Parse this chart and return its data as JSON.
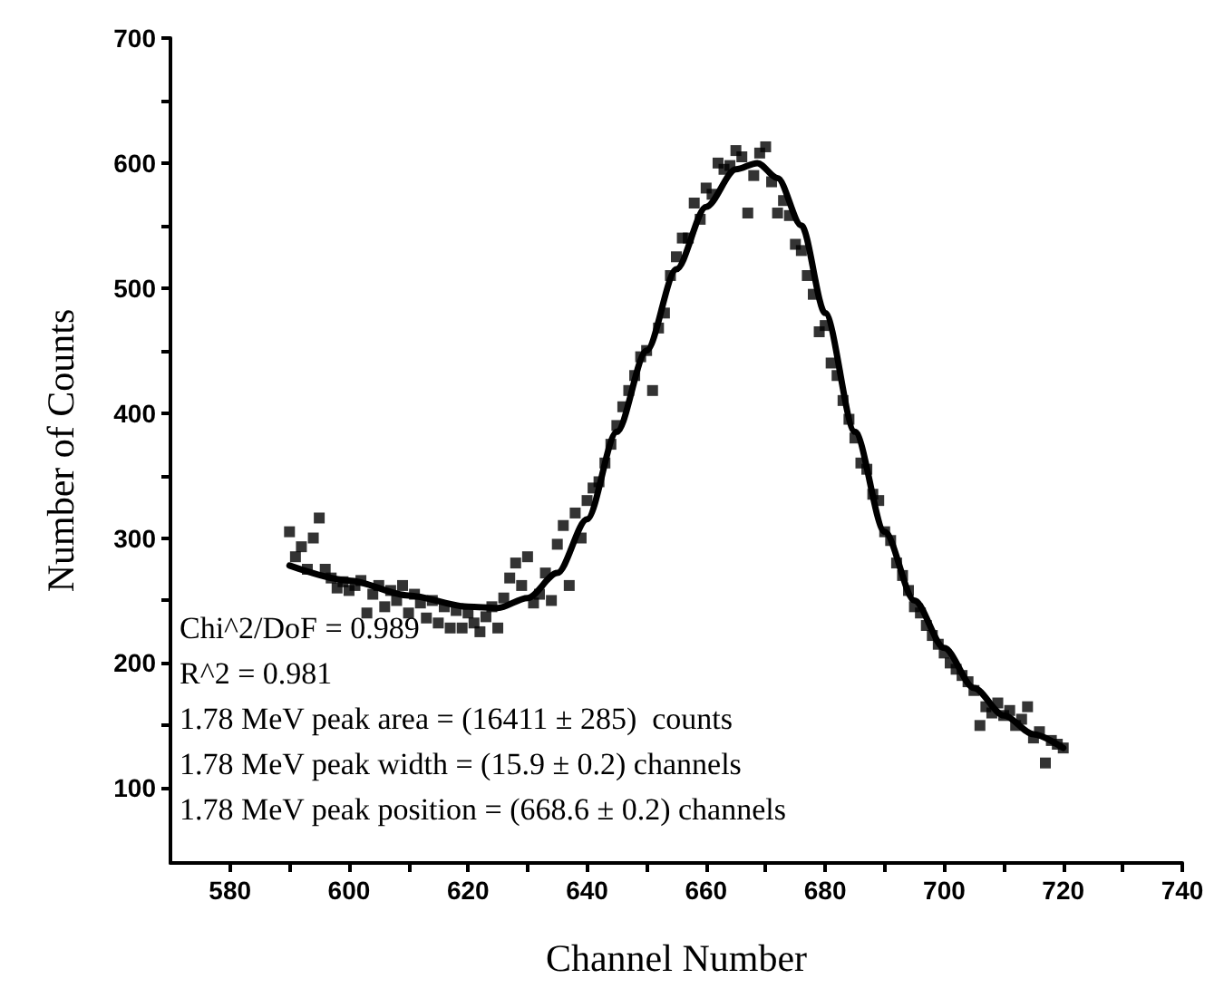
{
  "chart_data": {
    "type": "scatter",
    "xlabel": "Channel Number",
    "ylabel": "Number of Counts",
    "xlim": [
      570,
      740
    ],
    "xticks": [
      580,
      600,
      620,
      640,
      660,
      680,
      700,
      720,
      740
    ],
    "ylim": [
      40,
      700
    ],
    "yticks": [
      100,
      200,
      300,
      400,
      500,
      600,
      700
    ],
    "grid": false,
    "annotations": [
      "Chi^2/DoF = 0.989",
      "R^2 = 0.981",
      "1.78 MeV peak area = (16411 ± 285)  counts",
      "1.78 MeV peak width = (15.9 ± 0.2) channels",
      "1.78 MeV peak position = (668.6 ± 0.2) channels"
    ],
    "series": [
      {
        "type": "scatter",
        "color": "#000000",
        "marker": "square",
        "x": [
          590,
          591,
          592,
          593,
          594,
          595,
          596,
          597,
          598,
          599,
          600,
          601,
          602,
          603,
          604,
          605,
          606,
          607,
          608,
          609,
          610,
          611,
          612,
          613,
          614,
          615,
          616,
          617,
          618,
          619,
          620,
          621,
          622,
          623,
          624,
          625,
          626,
          627,
          628,
          629,
          630,
          631,
          632,
          633,
          634,
          635,
          636,
          637,
          638,
          639,
          640,
          641,
          642,
          643,
          644,
          645,
          646,
          647,
          648,
          649,
          650,
          651,
          652,
          653,
          654,
          655,
          656,
          657,
          658,
          659,
          660,
          661,
          662,
          663,
          664,
          665,
          666,
          667,
          668,
          669,
          670,
          671,
          672,
          673,
          674,
          675,
          676,
          677,
          678,
          679,
          680,
          681,
          682,
          683,
          684,
          685,
          686,
          687,
          688,
          689,
          690,
          691,
          692,
          693,
          694,
          695,
          696,
          697,
          698,
          699,
          700,
          701,
          702,
          703,
          704,
          705,
          706,
          707,
          708,
          709,
          710,
          711,
          712,
          713,
          714,
          715,
          716,
          717,
          718,
          719,
          720
        ],
        "values": [
          305,
          285,
          293,
          275,
          300,
          316,
          275,
          268,
          260,
          265,
          258,
          262,
          266,
          240,
          255,
          262,
          245,
          258,
          250,
          262,
          240,
          255,
          248,
          236,
          250,
          232,
          245,
          228,
          242,
          228,
          240,
          232,
          225,
          237,
          245,
          228,
          252,
          268,
          280,
          262,
          285,
          248,
          255,
          272,
          250,
          295,
          310,
          262,
          320,
          300,
          330,
          340,
          345,
          360,
          375,
          390,
          405,
          418,
          430,
          445,
          450,
          418,
          468,
          480,
          510,
          525,
          540,
          540,
          568,
          555,
          580,
          575,
          600,
          595,
          598,
          610,
          605,
          560,
          590,
          608,
          613,
          585,
          560,
          570,
          558,
          535,
          530,
          510,
          495,
          465,
          470,
          440,
          430,
          410,
          395,
          380,
          360,
          355,
          335,
          330,
          305,
          298,
          280,
          270,
          258,
          245,
          240,
          230,
          222,
          215,
          208,
          200,
          195,
          190,
          185,
          178,
          150,
          165,
          160,
          168,
          158,
          162,
          150,
          155,
          165,
          140,
          145,
          120,
          138,
          135,
          132
        ]
      },
      {
        "type": "line",
        "color": "#000000",
        "marker": "none",
        "line_style": "solid",
        "x": [
          590,
          600,
          610,
          620,
          625,
          630,
          635,
          640,
          645,
          650,
          655,
          660,
          665,
          668.6,
          672,
          676,
          680,
          685,
          690,
          695,
          700,
          705,
          710,
          715,
          720
        ],
        "values": [
          278,
          266,
          254,
          245,
          244,
          252,
          272,
          315,
          385,
          450,
          515,
          565,
          595,
          600,
          588,
          550,
          480,
          385,
          305,
          250,
          212,
          180,
          158,
          143,
          132
        ]
      }
    ]
  }
}
